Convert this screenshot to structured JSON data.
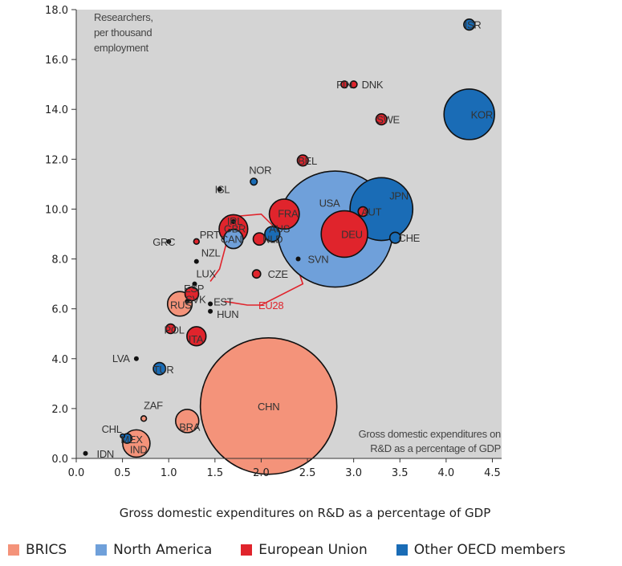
{
  "chart_data": {
    "type": "scatter",
    "bubble": true,
    "xlabel": "Gross domestic expenditures on R&D as a percentage of GDP",
    "ylabel": "Researchers, per thousand employment",
    "xlim": [
      0,
      4.6
    ],
    "ylim": [
      0,
      18
    ],
    "x_ticks": [
      "0.0",
      "0.5",
      "1.0",
      "1.5",
      "2.0",
      "2.5",
      "3.0",
      "3.5",
      "4.0",
      "4.5"
    ],
    "y_ticks": [
      "0.0",
      "2.0",
      "4.0",
      "6.0",
      "8.0",
      "10.0",
      "12.0",
      "14.0",
      "16.0",
      "18.0"
    ],
    "grid": false,
    "plot_background": "#d4d4d4",
    "ylabel_lines": [
      "Researchers,",
      "per thousand",
      "employment"
    ],
    "xlabel_inplot_lines": [
      "Gross domestic expenditures on",
      "R&D as a percentage of GDP"
    ],
    "legend": {
      "placement": "bottom",
      "items": [
        {
          "label": "BRICS",
          "color": "#f4937a"
        },
        {
          "label": "North America",
          "color": "#6fa0da"
        },
        {
          "label": "European Union",
          "color": "#e0242c"
        },
        {
          "label": "Other OECD members",
          "color": "#1a6cb6"
        }
      ]
    },
    "colors": {
      "BRICS": "#f4937a",
      "North America": "#6fa0da",
      "European Union": "#e0242c",
      "Other OECD members": "#1a6cb6",
      "Other": "#111111"
    },
    "points": [
      {
        "label": "CHN",
        "group": "BRICS",
        "x": 2.08,
        "y": 2.1,
        "size": 100
      },
      {
        "label": "USA",
        "group": "North America",
        "x": 2.8,
        "y": 9.2,
        "size": 85
      },
      {
        "label": "JPN",
        "group": "Other OECD members",
        "x": 3.3,
        "y": 10.0,
        "size": 46
      },
      {
        "label": "KOR",
        "group": "Other OECD members",
        "x": 4.25,
        "y": 13.8,
        "size": 37
      },
      {
        "label": "DEU",
        "group": "European Union",
        "x": 2.9,
        "y": 9.0,
        "size": 34
      },
      {
        "label": "FRA",
        "group": "European Union",
        "x": 2.25,
        "y": 9.8,
        "size": 22
      },
      {
        "label": "GBR",
        "group": "European Union",
        "x": 1.7,
        "y": 9.2,
        "size": 21
      },
      {
        "label": "RUS",
        "group": "BRICS",
        "x": 1.12,
        "y": 6.2,
        "size": 18
      },
      {
        "label": "BRA",
        "group": "BRICS",
        "x": 1.2,
        "y": 1.5,
        "size": 17
      },
      {
        "label": "IND",
        "group": "BRICS",
        "x": 0.65,
        "y": 0.6,
        "size": 20
      },
      {
        "label": "CAN",
        "group": "North America",
        "x": 1.7,
        "y": 8.8,
        "size": 14
      },
      {
        "label": "ITA",
        "group": "European Union",
        "x": 1.3,
        "y": 4.9,
        "size": 14
      },
      {
        "label": "AUS",
        "group": "Other OECD members",
        "x": 2.12,
        "y": 9.0,
        "size": 11
      },
      {
        "label": "ESP",
        "group": "European Union",
        "x": 1.25,
        "y": 6.6,
        "size": 10
      },
      {
        "label": "CHE",
        "group": "Other OECD members",
        "x": 3.45,
        "y": 8.85,
        "size": 8
      },
      {
        "label": "SWE",
        "group": "European Union",
        "x": 3.3,
        "y": 13.6,
        "size": 8
      },
      {
        "label": "ISR",
        "group": "Other OECD members",
        "x": 4.25,
        "y": 17.4,
        "size": 8
      },
      {
        "label": "TUR",
        "group": "Other OECD members",
        "x": 0.9,
        "y": 3.6,
        "size": 9
      },
      {
        "label": "NLD",
        "group": "European Union",
        "x": 1.98,
        "y": 8.8,
        "size": 9
      },
      {
        "label": "BEL",
        "group": "European Union",
        "x": 2.45,
        "y": 11.95,
        "size": 8
      },
      {
        "label": "AUT",
        "group": "European Union",
        "x": 3.1,
        "y": 9.9,
        "size": 7
      },
      {
        "label": "POL",
        "group": "European Union",
        "x": 1.02,
        "y": 5.2,
        "size": 7
      },
      {
        "label": "FIN",
        "group": "European Union",
        "x": 2.9,
        "y": 15.0,
        "size": 5
      },
      {
        "label": "DNK",
        "group": "European Union",
        "x": 3.0,
        "y": 15.0,
        "size": 5
      },
      {
        "label": "CZE",
        "group": "European Union",
        "x": 1.95,
        "y": 7.4,
        "size": 6
      },
      {
        "label": "PRT",
        "group": "European Union",
        "x": 1.3,
        "y": 8.7,
        "size": 4
      },
      {
        "label": "NOR",
        "group": "Other OECD members",
        "x": 1.92,
        "y": 11.1,
        "size": 5
      },
      {
        "label": "MEX",
        "group": "Other OECD members",
        "x": 0.55,
        "y": 0.8,
        "size": 7
      },
      {
        "label": "ZAF",
        "group": "BRICS",
        "x": 0.73,
        "y": 1.6,
        "size": 4
      },
      {
        "label": "CHL",
        "group": "Other OECD members",
        "x": 0.5,
        "y": 0.9,
        "size": 3
      },
      {
        "label": "IDN",
        "group": "Other",
        "x": 0.1,
        "y": 0.2,
        "size": 2
      },
      {
        "label": "GRC",
        "group": "Other",
        "x": 1.0,
        "y": 8.7,
        "size": 2
      },
      {
        "label": "ISL",
        "group": "Other",
        "x": 1.55,
        "y": 10.8,
        "size": 2
      },
      {
        "label": "IRL",
        "group": "Other",
        "x": 1.7,
        "y": 9.5,
        "size": 2
      },
      {
        "label": "NZL",
        "group": "Other",
        "x": 1.3,
        "y": 7.9,
        "size": 2
      },
      {
        "label": "LUX",
        "group": "Other",
        "x": 1.28,
        "y": 7.0,
        "size": 2
      },
      {
        "label": "SVK",
        "group": "Other",
        "x": 1.2,
        "y": 6.3,
        "size": 2
      },
      {
        "label": "EST",
        "group": "Other",
        "x": 1.45,
        "y": 6.2,
        "size": 2
      },
      {
        "label": "HUN",
        "group": "Other",
        "x": 1.45,
        "y": 5.9,
        "size": 2
      },
      {
        "label": "SVN",
        "group": "Other",
        "x": 2.4,
        "y": 8.0,
        "size": 2
      },
      {
        "label": "LVA",
        "group": "Other",
        "x": 0.65,
        "y": 4.0,
        "size": 2
      }
    ],
    "eu28_outline": {
      "label": "EU28",
      "x": [
        1.45,
        1.55,
        1.7,
        2.0,
        2.3,
        2.45,
        2.0,
        1.85,
        1.6
      ],
      "y": [
        7.1,
        7.6,
        9.7,
        9.8,
        8.7,
        7.0,
        6.15,
        6.15,
        6.3
      ]
    }
  }
}
